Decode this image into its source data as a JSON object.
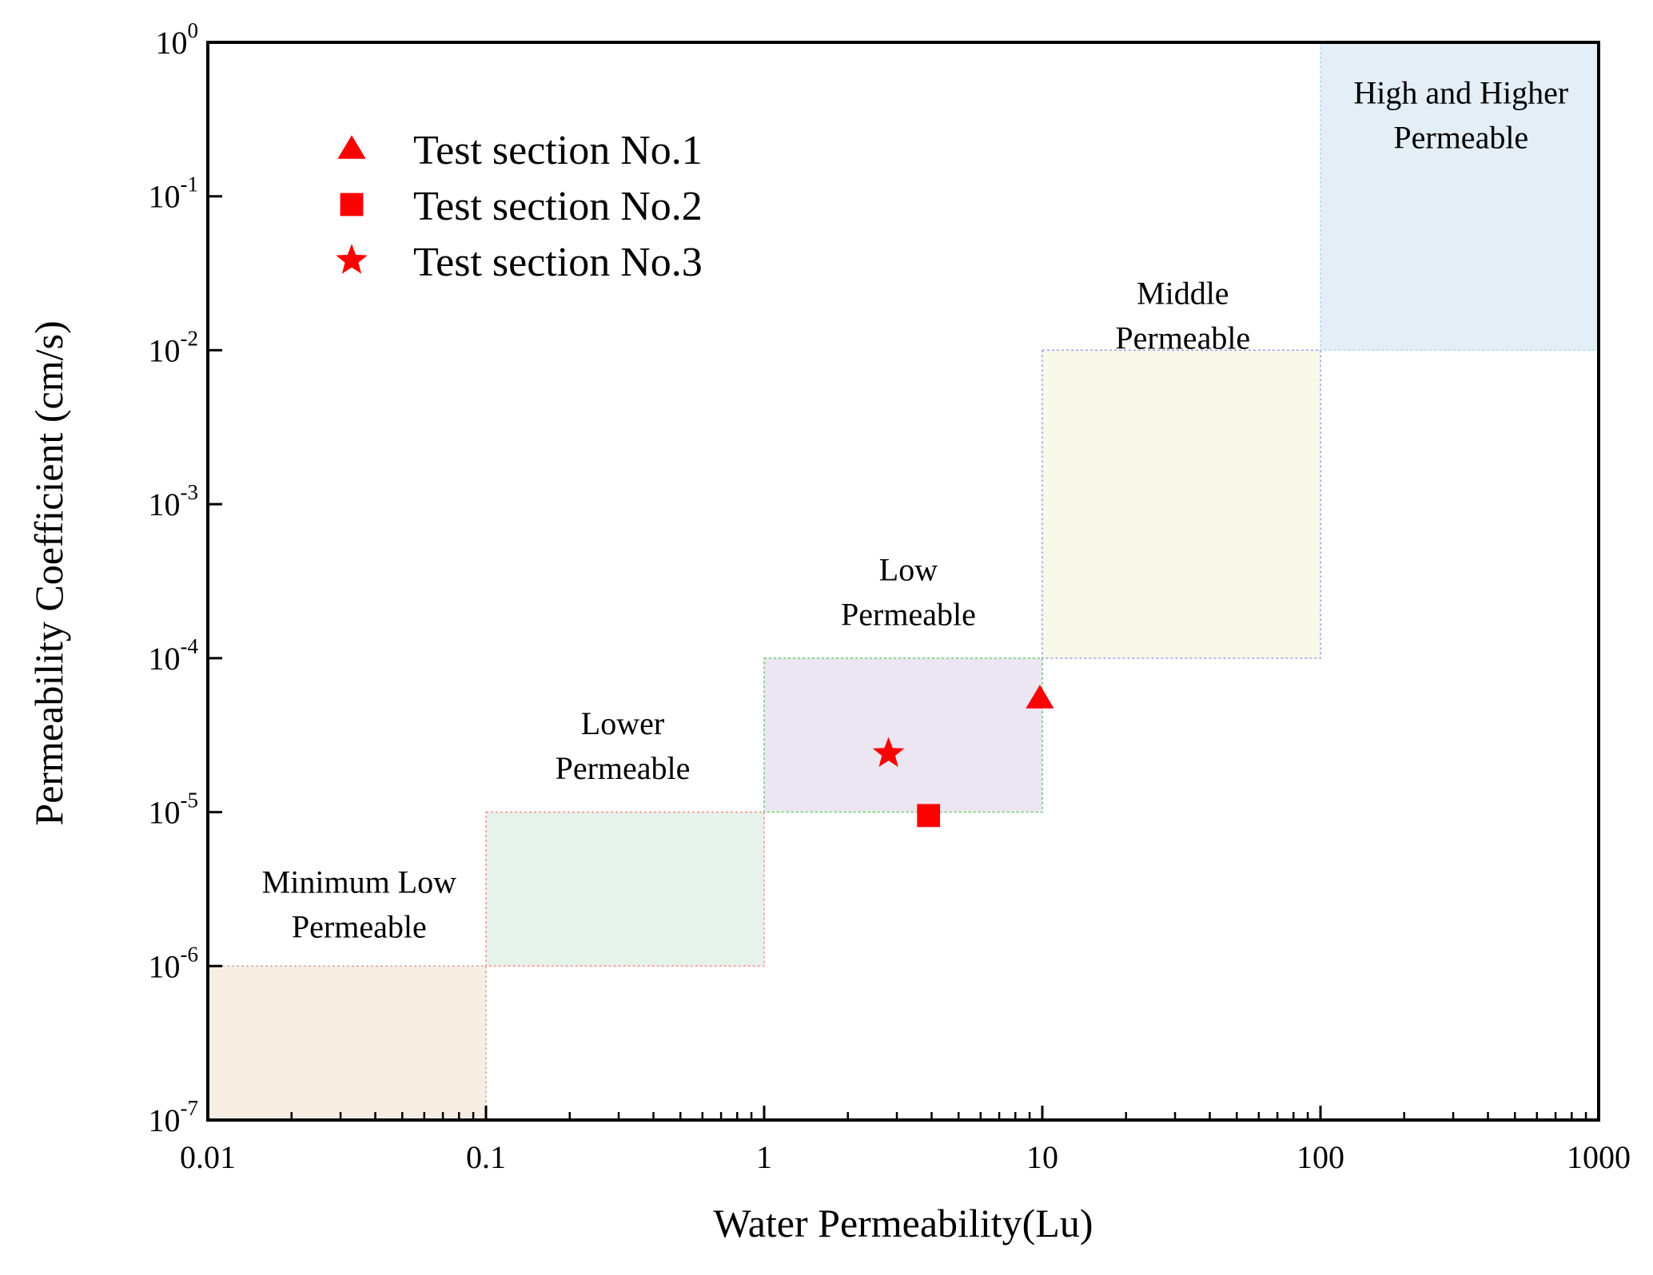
{
  "chart_data": {
    "type": "scatter",
    "title": "",
    "xlabel": "Water Permeability(Lu)",
    "ylabel": "Permeability Coefficient  (cm/s)",
    "x_scale": "log",
    "y_scale": "log",
    "xlim": [
      0.01,
      1000
    ],
    "ylim": [
      1e-07,
      1
    ],
    "x_ticks": [
      {
        "value": 0.01,
        "label": "0.01"
      },
      {
        "value": 0.1,
        "label": "0.1"
      },
      {
        "value": 1,
        "label": "1"
      },
      {
        "value": 10,
        "label": "10"
      },
      {
        "value": 100,
        "label": "100"
      },
      {
        "value": 1000,
        "label": "1000"
      }
    ],
    "y_ticks": [
      {
        "value": 1e-07,
        "base": "10",
        "exp": "-7"
      },
      {
        "value": 1e-06,
        "base": "10",
        "exp": "-6"
      },
      {
        "value": 1e-05,
        "base": "10",
        "exp": "-5"
      },
      {
        "value": 0.0001,
        "base": "10",
        "exp": "-4"
      },
      {
        "value": 0.001,
        "base": "10",
        "exp": "-3"
      },
      {
        "value": 0.01,
        "base": "10",
        "exp": "-2"
      },
      {
        "value": 0.1,
        "base": "10",
        "exp": "-1"
      },
      {
        "value": 1,
        "base": "10",
        "exp": "0"
      }
    ],
    "grid": false,
    "legend_position": "top-left",
    "zones": [
      {
        "name": "minimum-low",
        "label_lines": [
          "Minimum Low",
          "Permeable"
        ],
        "x": [
          0.01,
          0.1
        ],
        "y": [
          1e-07,
          1e-06
        ],
        "fill": "#f6eee2",
        "edge": "#d8a0a0",
        "label_at": [
          0.035,
          3e-06
        ]
      },
      {
        "name": "lower",
        "label_lines": [
          "Lower",
          "Permeable"
        ],
        "x": [
          0.1,
          1
        ],
        "y": [
          1e-06,
          1e-05
        ],
        "fill": "#e6f3ea",
        "edge": "#ff8a8a",
        "label_at": [
          0.31,
          3.2e-05
        ]
      },
      {
        "name": "low",
        "label_lines": [
          "Low",
          "Permeable"
        ],
        "x": [
          1,
          10
        ],
        "y": [
          1e-05,
          0.0001
        ],
        "fill": "#ece6f3",
        "edge": "#66cc66",
        "label_at": [
          3.3,
          0.00032
        ]
      },
      {
        "name": "middle",
        "label_lines": [
          "Middle",
          "Permeable"
        ],
        "x": [
          10,
          100
        ],
        "y": [
          0.0001,
          0.01
        ],
        "fill": "#f8f9e8",
        "edge": "#9a9af0",
        "label_at": [
          32,
          0.02
        ]
      },
      {
        "name": "high",
        "label_lines": [
          "High and Higher",
          "Permeable"
        ],
        "x": [
          100,
          1000
        ],
        "y": [
          0.01,
          1
        ],
        "fill": "#e3eef6",
        "edge": "#a9d6ec",
        "label_at": [
          320,
          0.4
        ]
      }
    ],
    "series": [
      {
        "name": "Test section No.1",
        "marker": "triangle",
        "color": "#ff0000",
        "x": [
          9.8
        ],
        "y": [
          5.5e-05
        ]
      },
      {
        "name": "Test section No.2",
        "marker": "square",
        "color": "#ff0000",
        "x": [
          3.9
        ],
        "y": [
          9.5e-06
        ]
      },
      {
        "name": "Test section No.3",
        "marker": "star",
        "color": "#ff0000",
        "x": [
          2.8
        ],
        "y": [
          2.4e-05
        ]
      }
    ]
  }
}
